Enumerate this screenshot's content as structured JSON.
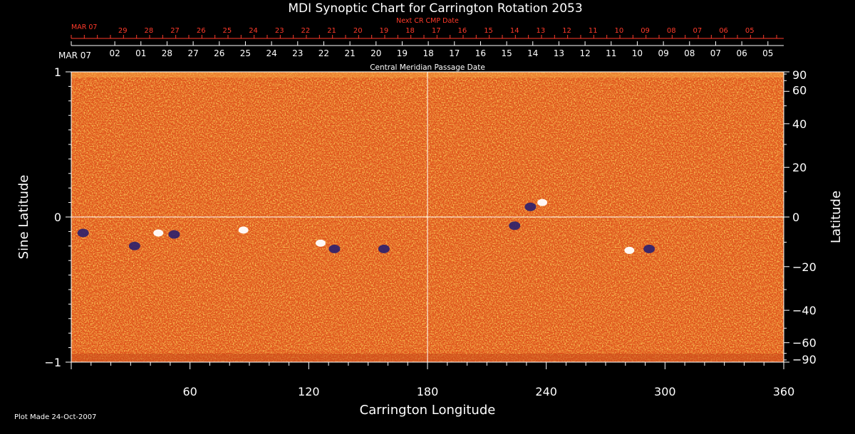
{
  "chart_data": {
    "type": "heatmap",
    "title": "MDI Synoptic Chart for Carrington Rotation 2053",
    "xlabel": "Carrington Longitude",
    "ylabel_left": "Sine Latitude",
    "ylabel_right": "Latitude",
    "top_axis_label": "Central Meridian Passage Date",
    "next_axis_label": "Next CR CMP Date",
    "xlim": [
      0,
      360
    ],
    "ylim": [
      -1,
      1
    ],
    "x_ticks": [
      60,
      120,
      180,
      240,
      300,
      360
    ],
    "x_tick_labels": [
      "60",
      "120",
      "180",
      "240",
      "300",
      "360"
    ],
    "y_left_ticks": [
      -1,
      0,
      1
    ],
    "y_left_tick_labels": [
      "−1",
      "0",
      "1"
    ],
    "y_right_ticks": [
      90,
      60,
      40,
      20,
      0,
      -20,
      -40,
      -60,
      -90
    ],
    "y_right_tick_labels": [
      "90",
      "60",
      "40",
      "20",
      "0",
      "−20",
      "−40",
      "−60",
      "−90"
    ],
    "cmp_dates": [
      {
        "lon": 0.0,
        "label": "MAR 07"
      },
      {
        "lon": 22.0,
        "label": "02"
      },
      {
        "lon": 35.2,
        "label": "01"
      },
      {
        "lon": 48.4,
        "label": "28"
      },
      {
        "lon": 61.6,
        "label": "27"
      },
      {
        "lon": 74.8,
        "label": "26"
      },
      {
        "lon": 88.0,
        "label": "25"
      },
      {
        "lon": 101.2,
        "label": "24"
      },
      {
        "lon": 114.4,
        "label": "23"
      },
      {
        "lon": 127.6,
        "label": "22"
      },
      {
        "lon": 140.8,
        "label": "21"
      },
      {
        "lon": 154.0,
        "label": "20"
      },
      {
        "lon": 167.2,
        "label": "19"
      },
      {
        "lon": 180.4,
        "label": "18"
      },
      {
        "lon": 193.6,
        "label": "17"
      },
      {
        "lon": 206.8,
        "label": "16"
      },
      {
        "lon": 220.0,
        "label": "15"
      },
      {
        "lon": 233.2,
        "label": "14"
      },
      {
        "lon": 246.4,
        "label": "13"
      },
      {
        "lon": 259.6,
        "label": "12"
      },
      {
        "lon": 272.8,
        "label": "11"
      },
      {
        "lon": 286.0,
        "label": "10"
      },
      {
        "lon": 299.2,
        "label": "09"
      },
      {
        "lon": 312.4,
        "label": "08"
      },
      {
        "lon": 325.6,
        "label": "07"
      },
      {
        "lon": 338.8,
        "label": "06"
      },
      {
        "lon": 352.0,
        "label": "05"
      }
    ],
    "next_cr_dates": [
      {
        "lon": 0.0,
        "label": "MAR 07"
      },
      {
        "lon": 26.0,
        "label": "29"
      },
      {
        "lon": 39.2,
        "label": "28"
      },
      {
        "lon": 52.4,
        "label": "27"
      },
      {
        "lon": 65.6,
        "label": "26"
      },
      {
        "lon": 78.8,
        "label": "25"
      },
      {
        "lon": 92.0,
        "label": "24"
      },
      {
        "lon": 105.2,
        "label": "23"
      },
      {
        "lon": 118.4,
        "label": "22"
      },
      {
        "lon": 131.6,
        "label": "21"
      },
      {
        "lon": 144.8,
        "label": "20"
      },
      {
        "lon": 158.0,
        "label": "19"
      },
      {
        "lon": 171.2,
        "label": "18"
      },
      {
        "lon": 184.4,
        "label": "17"
      },
      {
        "lon": 197.6,
        "label": "16"
      },
      {
        "lon": 210.8,
        "label": "15"
      },
      {
        "lon": 224.0,
        "label": "14"
      },
      {
        "lon": 237.2,
        "label": "13"
      },
      {
        "lon": 250.4,
        "label": "12"
      },
      {
        "lon": 263.6,
        "label": "11"
      },
      {
        "lon": 276.8,
        "label": "10"
      },
      {
        "lon": 290.0,
        "label": "09"
      },
      {
        "lon": 303.2,
        "label": "08"
      },
      {
        "lon": 316.4,
        "label": "07"
      },
      {
        "lon": 329.6,
        "label": "06"
      },
      {
        "lon": 342.8,
        "label": "05"
      }
    ],
    "reference_lines": {
      "lon": 180,
      "sine_lat": 0
    },
    "magnetic_features": [
      {
        "lon": 44,
        "sin_lat": -0.11,
        "polarity": "positive"
      },
      {
        "lon": 52,
        "sin_lat": -0.12,
        "polarity": "negative"
      },
      {
        "lon": 6,
        "sin_lat": -0.11,
        "polarity": "negative"
      },
      {
        "lon": 32,
        "sin_lat": -0.2,
        "polarity": "negative"
      },
      {
        "lon": 87,
        "sin_lat": -0.09,
        "polarity": "positive"
      },
      {
        "lon": 126,
        "sin_lat": -0.18,
        "polarity": "positive"
      },
      {
        "lon": 133,
        "sin_lat": -0.22,
        "polarity": "negative"
      },
      {
        "lon": 158,
        "sin_lat": -0.22,
        "polarity": "negative"
      },
      {
        "lon": 232,
        "sin_lat": 0.07,
        "polarity": "negative"
      },
      {
        "lon": 238,
        "sin_lat": 0.1,
        "polarity": "positive"
      },
      {
        "lon": 224,
        "sin_lat": -0.06,
        "polarity": "negative"
      },
      {
        "lon": 292,
        "sin_lat": -0.22,
        "polarity": "negative"
      },
      {
        "lon": 282,
        "sin_lat": -0.23,
        "polarity": "positive"
      }
    ],
    "colors": {
      "background": "#000000",
      "field_base": "#e0551c",
      "positive": "#ffffff",
      "negative": "#2a1f6e",
      "date_red": "#ff3a2a"
    }
  },
  "footer": {
    "plot_made": "Plot Made 24-Oct-2007"
  }
}
